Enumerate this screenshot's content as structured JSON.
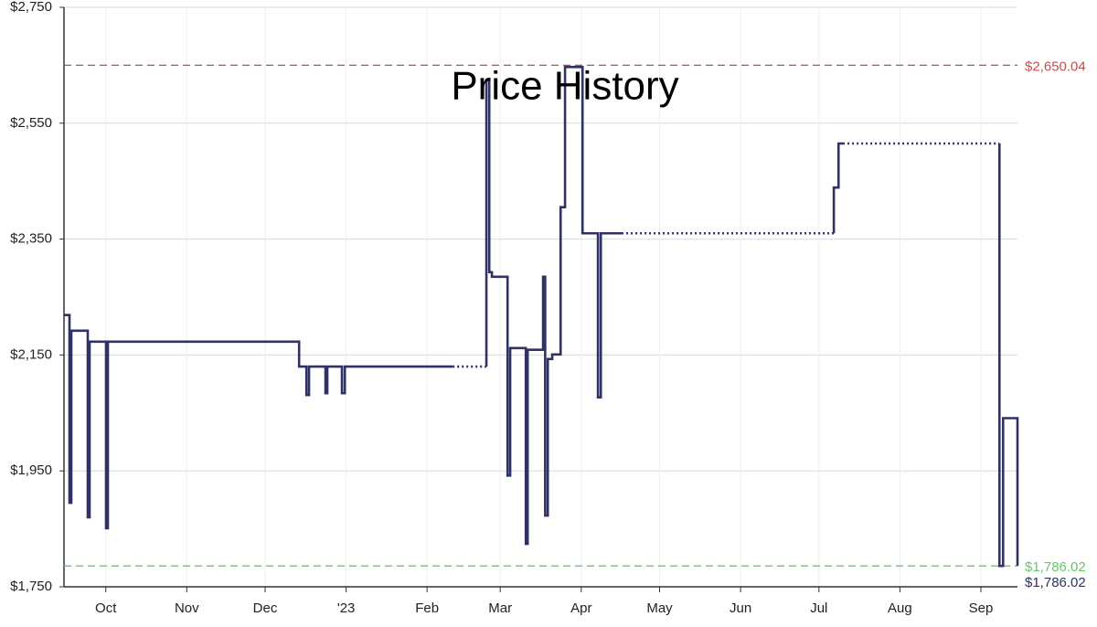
{
  "chart_data": {
    "type": "line",
    "title": "Price History",
    "xlim": [
      0,
      365
    ],
    "xticks": [
      {
        "value": 16,
        "label": "Oct"
      },
      {
        "value": 47,
        "label": "Nov"
      },
      {
        "value": 77,
        "label": "Dec"
      },
      {
        "value": 108,
        "label": "'23"
      },
      {
        "value": 139,
        "label": "Feb"
      },
      {
        "value": 167,
        "label": "Mar"
      },
      {
        "value": 198,
        "label": "Apr"
      },
      {
        "value": 228,
        "label": "May"
      },
      {
        "value": 259,
        "label": "Jun"
      },
      {
        "value": 289,
        "label": "Jul"
      },
      {
        "value": 320,
        "label": "Aug"
      },
      {
        "value": 351,
        "label": "Sep"
      }
    ],
    "ylim": [
      1750,
      2750
    ],
    "yticks": [
      {
        "value": 1750,
        "label": "$1,750"
      },
      {
        "value": 1950,
        "label": "$1,950"
      },
      {
        "value": 2150,
        "label": "$2,150"
      },
      {
        "value": 2350,
        "label": "$2,350"
      },
      {
        "value": 2550,
        "label": "$2,550"
      },
      {
        "value": 2750,
        "label": "$2,750"
      }
    ],
    "grid": true,
    "series": [
      {
        "color": "#2f3263",
        "dash": "solid",
        "x": [
          0,
          2.1,
          2.1,
          2.8,
          2.8,
          9.1,
          9.1,
          9.8,
          9.8,
          16.1,
          16.1,
          16.8,
          16.8,
          90,
          90,
          92.8,
          92.8,
          93.8,
          93.8,
          100.1,
          100.1,
          100.8,
          100.8,
          106.4,
          106.4,
          107.5,
          107.5,
          148.8,
          null,
          161.7,
          161.7,
          162.8,
          162.8,
          163.8,
          163.8,
          169.8,
          169.8,
          170.8,
          170.8,
          176.8,
          176.8,
          177.5,
          177.5,
          183.4,
          183.4,
          184.2,
          184.2,
          185.2,
          185.2,
          186.9,
          186.9,
          190.1,
          190.1,
          191.8,
          191.8,
          198.5,
          198.5,
          204.4,
          204.4,
          205.5,
          205.5,
          213.5,
          null,
          294.7,
          294.7,
          296.5,
          296.5,
          298.2,
          null,
          358.1,
          358.1,
          359.5,
          359.5,
          365,
          365
        ],
        "values": [
          2219,
          2219,
          1895,
          1895,
          2192,
          2192,
          1870,
          1870,
          2173,
          2173,
          1851,
          1851,
          2173,
          2173,
          2130,
          2130,
          2081,
          2081,
          2130,
          2130,
          2084,
          2084,
          2130,
          2130,
          2084,
          2084,
          2130,
          2130,
          null,
          2130,
          2624,
          2624,
          2293,
          2293,
          2285,
          2285,
          1942,
          1942,
          2162,
          2162,
          1824,
          1824,
          2159,
          2159,
          2285,
          2285,
          1873,
          1873,
          2143,
          2143,
          2151,
          2151,
          2405,
          2405,
          2647,
          2647,
          2360,
          2360,
          2077,
          2077,
          2360,
          2360,
          null,
          2360,
          2439,
          2439,
          2515,
          2515,
          null,
          2515,
          1786,
          1786,
          2041,
          2041,
          1786
        ]
      },
      {
        "color": "#2f3263",
        "dash": "dotted",
        "x": [
          148.8,
          161.7,
          null,
          213.5,
          294.7,
          null,
          298.2,
          358.1
        ],
        "values": [
          2130,
          2130,
          null,
          2360,
          2360,
          null,
          2515,
          2515
        ]
      }
    ],
    "ref_lines": [
      {
        "value": 2650.04,
        "label": "$2,650.04",
        "color": "#c0504d"
      },
      {
        "value": 1786.02,
        "label": "$1,786.02",
        "color": "#6cc46a"
      }
    ],
    "current": {
      "value": 1786.02,
      "label": "$1,786.02",
      "color": "#2f3263"
    }
  }
}
